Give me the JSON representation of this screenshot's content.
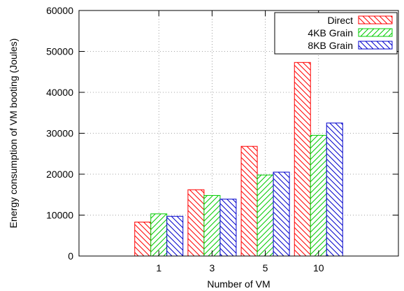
{
  "chart_data": {
    "type": "bar",
    "xlabel": "Number of VM",
    "ylabel": "Energy consumption of VM booting (Joules)",
    "categories": [
      "1",
      "3",
      "5",
      "10"
    ],
    "ylim": [
      0,
      60000
    ],
    "yticks": [
      "0",
      "10000",
      "20000",
      "30000",
      "40000",
      "50000",
      "60000"
    ],
    "grid": true,
    "legend_position": "top-right",
    "series": [
      {
        "name": "Direct",
        "color": "#ff0000",
        "hatch": "backslash",
        "values": [
          8300,
          16200,
          26800,
          47300
        ]
      },
      {
        "name": "4KB Grain",
        "color": "#00cc00",
        "hatch": "slash",
        "values": [
          10300,
          14800,
          19800,
          29500
        ]
      },
      {
        "name": "8KB Grain",
        "color": "#0000cc",
        "hatch": "backslash",
        "values": [
          9700,
          13900,
          20500,
          32500
        ]
      }
    ]
  }
}
